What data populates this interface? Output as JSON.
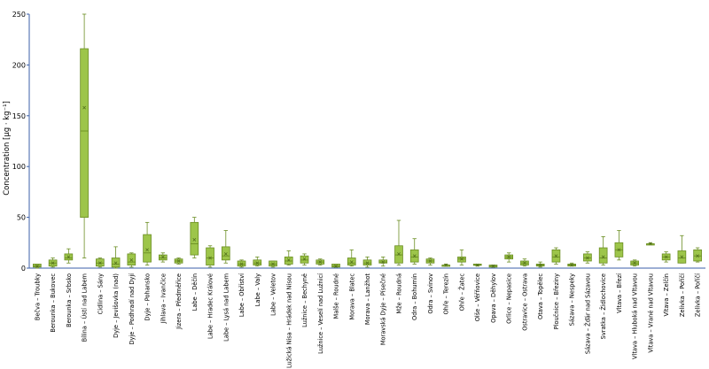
{
  "chart_data": {
    "type": "boxplot",
    "ylabel": "Concentration [µg · kg⁻¹]",
    "ylim": [
      0,
      250
    ],
    "yticks": [
      0,
      50,
      100,
      150,
      200,
      250
    ],
    "grid": false,
    "colors": {
      "box_fill": "#9dc54a",
      "box_stroke": "#6b8e23",
      "axis": "#3b5fa8",
      "label_default": "#000000",
      "label_highlight": "#c00000"
    },
    "categories": [
      {
        "label": "Bečva – Troubky",
        "min": 0,
        "q1": 1,
        "median": 2,
        "q3": 4,
        "max": 4,
        "mean": 2,
        "highlight": false
      },
      {
        "label": "Berounka – Bukovec",
        "min": 1,
        "q1": 2,
        "median": 5,
        "q3": 8,
        "max": 10,
        "mean": 5,
        "highlight": false
      },
      {
        "label": "Berounka – Srbsko",
        "min": 5,
        "q1": 8,
        "median": 10,
        "q3": 14,
        "max": 19,
        "mean": 11,
        "highlight": false
      },
      {
        "label": "Bílina – Ústí nad Labem",
        "min": 10,
        "q1": 50,
        "median": 135,
        "q3": 216,
        "max": 250,
        "mean": 158,
        "highlight": true
      },
      {
        "label": "Cidlina – Sány",
        "min": 1,
        "q1": 2,
        "median": 5,
        "q3": 9,
        "max": 10,
        "mean": 5,
        "highlight": false
      },
      {
        "label": "Dyje – Jevišovka (nad)",
        "min": 0,
        "q1": 1,
        "median": 4,
        "q3": 10,
        "max": 21,
        "mean": 5,
        "highlight": false
      },
      {
        "label": "Dyje – Podhradí nad Dyjí",
        "min": 1,
        "q1": 3,
        "median": 6,
        "q3": 14,
        "max": 15,
        "mean": 8,
        "highlight": false
      },
      {
        "label": "Dyje – Pohansko",
        "min": 3,
        "q1": 6,
        "median": 15,
        "q3": 33,
        "max": 45,
        "mean": 18,
        "highlight": false
      },
      {
        "label": "Jihlava – Ivančice",
        "min": 6,
        "q1": 8,
        "median": 10,
        "q3": 13,
        "max": 15,
        "mean": 11,
        "highlight": false
      },
      {
        "label": "Jizera – Předměřice",
        "min": 4,
        "q1": 5,
        "median": 7,
        "q3": 9,
        "max": 10,
        "mean": 7,
        "highlight": false
      },
      {
        "label": "Labe – Děčín",
        "min": 10,
        "q1": 13,
        "median": 24,
        "q3": 45,
        "max": 50,
        "mean": 28,
        "highlight": true
      },
      {
        "label": "Labe – Hradec Králové",
        "min": 1,
        "q1": 3,
        "median": 10,
        "q3": 20,
        "max": 22,
        "mean": 10,
        "highlight": false
      },
      {
        "label": "Labe – Lysá nad Labem",
        "min": 5,
        "q1": 8,
        "median": 12,
        "q3": 21,
        "max": 37,
        "mean": 14,
        "highlight": false
      },
      {
        "label": "Labe – Obříství",
        "min": 1,
        "q1": 2,
        "median": 4,
        "q3": 7,
        "max": 8,
        "mean": 4,
        "highlight": false
      },
      {
        "label": "Labe – Valy",
        "min": 2,
        "q1": 3,
        "median": 5,
        "q3": 8,
        "max": 11,
        "mean": 5,
        "highlight": false
      },
      {
        "label": "Labe – Veletov",
        "min": 1,
        "q1": 2,
        "median": 4,
        "q3": 7,
        "max": 7,
        "mean": 4,
        "highlight": false
      },
      {
        "label": "Lužická Nisa – Hrádek nad Nisou",
        "min": 3,
        "q1": 4,
        "median": 7,
        "q3": 11,
        "max": 17,
        "mean": 8,
        "highlight": false
      },
      {
        "label": "Lužnice – Bechyně",
        "min": 3,
        "q1": 5,
        "median": 8,
        "q3": 12,
        "max": 14,
        "mean": 9,
        "highlight": false
      },
      {
        "label": "Lužnice – Veselí nad Lužnicí",
        "min": 3,
        "q1": 4,
        "median": 6,
        "q3": 8,
        "max": 9,
        "mean": 6,
        "highlight": false
      },
      {
        "label": "Malše – Roudné",
        "min": 1,
        "q1": 1,
        "median": 2,
        "q3": 4,
        "max": 4,
        "mean": 2,
        "highlight": false
      },
      {
        "label": "Morava – Blatec",
        "min": 2,
        "q1": 3,
        "median": 5,
        "q3": 10,
        "max": 18,
        "mean": 6,
        "highlight": false
      },
      {
        "label": "Morava – Lanžhot",
        "min": 1,
        "q1": 3,
        "median": 5,
        "q3": 8,
        "max": 11,
        "mean": 5,
        "highlight": false
      },
      {
        "label": "Moravská Dyje – Písečné",
        "min": 2,
        "q1": 5,
        "median": 6,
        "q3": 8,
        "max": 11,
        "mean": 6,
        "highlight": false
      },
      {
        "label": "Mže – Roudná",
        "min": 3,
        "q1": 5,
        "median": 13,
        "q3": 22,
        "max": 47,
        "mean": 14,
        "highlight": false
      },
      {
        "label": "Odra – Bohumín",
        "min": 4,
        "q1": 6,
        "median": 11,
        "q3": 18,
        "max": 29,
        "mean": 12,
        "highlight": false
      },
      {
        "label": "Odra – Svinov",
        "min": 3,
        "q1": 5,
        "median": 7,
        "q3": 9,
        "max": 10,
        "mean": 7,
        "highlight": false
      },
      {
        "label": "Ohře – Terezín",
        "min": 2,
        "q1": 2,
        "median": 3,
        "q3": 3,
        "max": 4,
        "mean": 3,
        "highlight": false
      },
      {
        "label": "Ohře – Žatec",
        "min": 3,
        "q1": 6,
        "median": 9,
        "q3": 11,
        "max": 18,
        "mean": 9,
        "highlight": false
      },
      {
        "label": "Olše – Věřňovice",
        "min": 2,
        "q1": 3,
        "median": 3,
        "q3": 4,
        "max": 4,
        "mean": 3,
        "highlight": false
      },
      {
        "label": "Opava – Děhylov",
        "min": 1,
        "q1": 1,
        "median": 2,
        "q3": 3,
        "max": 3,
        "mean": 2,
        "highlight": false
      },
      {
        "label": "Orlice – Nepasice",
        "min": 6,
        "q1": 9,
        "median": 11,
        "q3": 13,
        "max": 15,
        "mean": 11,
        "highlight": false
      },
      {
        "label": "Ostravice – Ostrava",
        "min": 2,
        "q1": 3,
        "median": 5,
        "q3": 7,
        "max": 9,
        "mean": 5,
        "highlight": false
      },
      {
        "label": "Otava – Topělec",
        "min": 1,
        "q1": 2,
        "median": 3,
        "q3": 4,
        "max": 6,
        "mean": 3,
        "highlight": false
      },
      {
        "label": "Ploučnice – Březiny",
        "min": 4,
        "q1": 6,
        "median": 11,
        "q3": 18,
        "max": 20,
        "mean": 12,
        "highlight": false
      },
      {
        "label": "Sázava – Nespeky",
        "min": 2,
        "q1": 2,
        "median": 3,
        "q3": 4,
        "max": 5,
        "mean": 3,
        "highlight": false
      },
      {
        "label": "Sázava – Žďár nad Sázavou",
        "min": 5,
        "q1": 7,
        "median": 10,
        "q3": 14,
        "max": 16,
        "mean": 10,
        "highlight": false
      },
      {
        "label": "Svratka – Židlochovice",
        "min": 3,
        "q1": 5,
        "median": 10,
        "q3": 20,
        "max": 31,
        "mean": 11,
        "highlight": false
      },
      {
        "label": "Vltava – Březí",
        "min": 8,
        "q1": 11,
        "median": 18,
        "q3": 25,
        "max": 37,
        "mean": 18,
        "highlight": false
      },
      {
        "label": "Vltava – Hluboká nad Vltavou",
        "min": 2,
        "q1": 3,
        "median": 5,
        "q3": 7,
        "max": 8,
        "mean": 5,
        "highlight": false
      },
      {
        "label": "Vltava – Vrané nad Vltavou",
        "min": 23,
        "q1": 24,
        "median": 24,
        "q3": 24,
        "max": 25,
        "mean": 24,
        "highlight": false
      },
      {
        "label": "Vltava – Zelčín",
        "min": 6,
        "q1": 8,
        "median": 11,
        "q3": 14,
        "max": 16,
        "mean": 11,
        "highlight": false
      },
      {
        "label": "Zelivka – Poříčí",
        "min": 5,
        "q1": 5,
        "median": 10,
        "q3": 17,
        "max": 32,
        "mean": 11,
        "highlight": false
      },
      {
        "label": "Zelivka – Poříčí ",
        "min": 6,
        "q1": 7,
        "median": 12,
        "q3": 18,
        "max": 20,
        "mean": 12,
        "highlight": false
      }
    ]
  }
}
